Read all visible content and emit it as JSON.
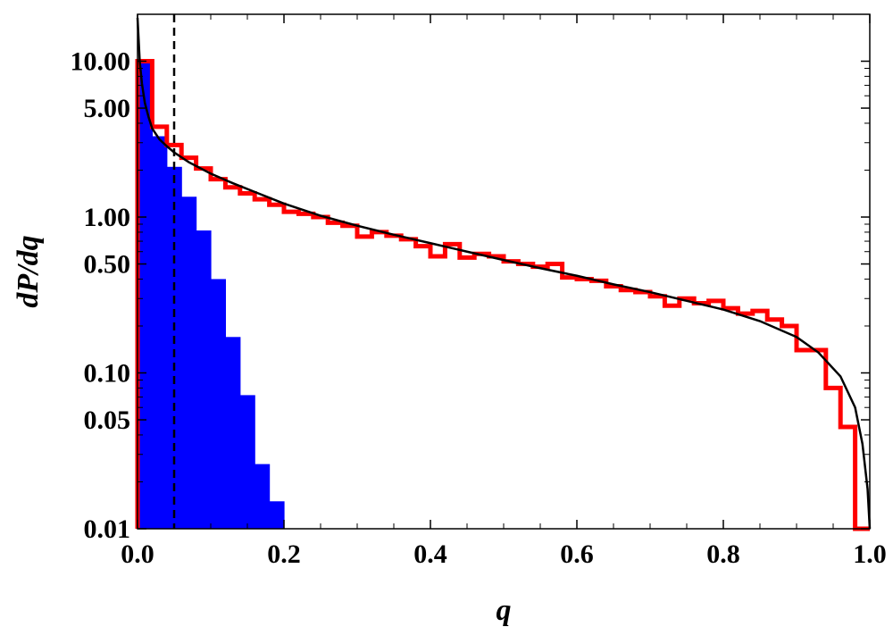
{
  "chart_data": {
    "type": "histogram",
    "xlabel": "q",
    "ylabel": "dP/dq",
    "xlim": [
      0,
      1
    ],
    "ylim": [
      0.01,
      20
    ],
    "y_scale": "log",
    "grid": false,
    "x_ticks": [
      "0.0",
      "0.2",
      "0.4",
      "0.6",
      "0.8",
      "1.0"
    ],
    "y_ticks": [
      {
        "value": 10,
        "label": "10.00"
      },
      {
        "value": 5,
        "label": "5.00"
      },
      {
        "value": 1,
        "label": "1.00"
      },
      {
        "value": 0.5,
        "label": "0.50"
      },
      {
        "value": 0.1,
        "label": "0.10"
      },
      {
        "value": 0.05,
        "label": "0.05"
      },
      {
        "value": 0.01,
        "label": "0.01"
      }
    ],
    "series": [
      {
        "kind": "step-histogram",
        "color": "#ff0000",
        "bin_edges": [
          0.0,
          0.02,
          0.04,
          0.06,
          0.08,
          0.1,
          0.12,
          0.14,
          0.16,
          0.18,
          0.2,
          0.22,
          0.24,
          0.26,
          0.28,
          0.3,
          0.32,
          0.34,
          0.36,
          0.38,
          0.4,
          0.42,
          0.44,
          0.46,
          0.48,
          0.5,
          0.52,
          0.54,
          0.56,
          0.58,
          0.6,
          0.62,
          0.64,
          0.66,
          0.68,
          0.7,
          0.72,
          0.74,
          0.76,
          0.78,
          0.8,
          0.82,
          0.84,
          0.86,
          0.88,
          0.9,
          0.92,
          0.94,
          0.96,
          0.98,
          1.0
        ],
        "values": [
          10.0,
          3.8,
          2.9,
          2.4,
          2.05,
          1.75,
          1.55,
          1.42,
          1.3,
          1.2,
          1.08,
          1.05,
          1.0,
          0.92,
          0.88,
          0.75,
          0.8,
          0.76,
          0.72,
          0.65,
          0.56,
          0.67,
          0.55,
          0.58,
          0.56,
          0.52,
          0.5,
          0.48,
          0.5,
          0.41,
          0.4,
          0.39,
          0.36,
          0.34,
          0.33,
          0.31,
          0.27,
          0.3,
          0.28,
          0.29,
          0.26,
          0.24,
          0.25,
          0.22,
          0.2,
          0.14,
          0.14,
          0.08,
          0.045,
          0.01
        ]
      },
      {
        "kind": "filled-histogram",
        "color": "#0000ff",
        "bin_edges": [
          0.0,
          0.02,
          0.04,
          0.06,
          0.08,
          0.1,
          0.12,
          0.14,
          0.16,
          0.18,
          0.2
        ],
        "values": [
          10.0,
          3.3,
          2.1,
          1.35,
          0.82,
          0.4,
          0.17,
          0.072,
          0.026,
          0.015
        ]
      },
      {
        "kind": "curve",
        "color": "#000000",
        "x": [
          0.0,
          0.003,
          0.006,
          0.01,
          0.015,
          0.02,
          0.03,
          0.04,
          0.05,
          0.07,
          0.1,
          0.13,
          0.16,
          0.2,
          0.25,
          0.3,
          0.35,
          0.4,
          0.45,
          0.5,
          0.55,
          0.6,
          0.65,
          0.7,
          0.75,
          0.8,
          0.85,
          0.9,
          0.93,
          0.96,
          0.98,
          0.99,
          0.997,
          1.0
        ],
        "y": [
          19.0,
          10.0,
          7.2,
          5.4,
          4.4,
          3.7,
          3.15,
          2.85,
          2.6,
          2.25,
          1.9,
          1.65,
          1.45,
          1.22,
          1.02,
          0.88,
          0.77,
          0.68,
          0.6,
          0.53,
          0.47,
          0.42,
          0.37,
          0.33,
          0.29,
          0.255,
          0.215,
          0.17,
          0.135,
          0.095,
          0.06,
          0.035,
          0.018,
          0.01
        ]
      },
      {
        "kind": "vertical-dashed-line",
        "color": "#000000",
        "x": 0.05
      }
    ]
  }
}
